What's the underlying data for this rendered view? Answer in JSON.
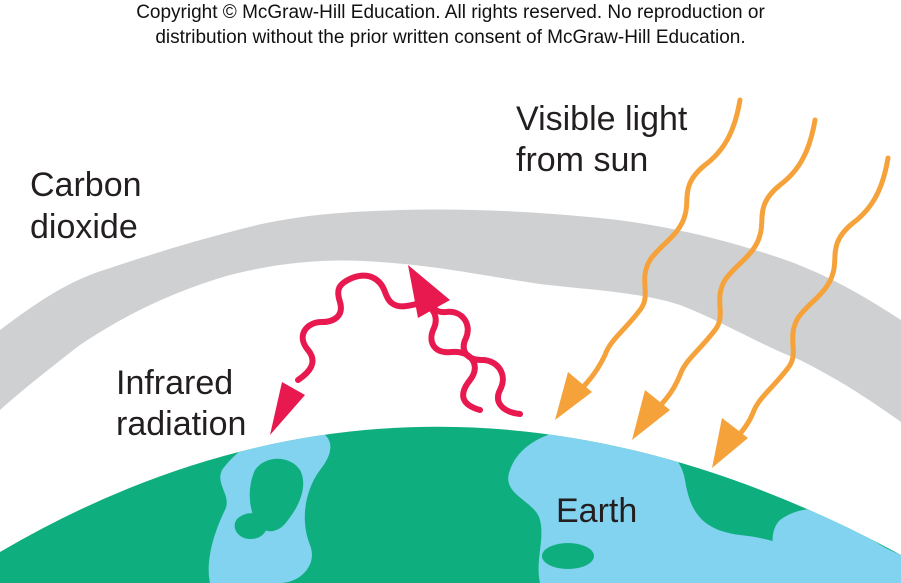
{
  "copyright": {
    "line1": "Copyright © McGraw-Hill Education.  All rights reserved. No reproduction or",
    "line2": "distribution without the prior written consent of McGraw-Hill Education."
  },
  "labels": {
    "carbon_dioxide": [
      "Carbon",
      "dioxide"
    ],
    "visible_light": [
      "Visible light",
      "from sun"
    ],
    "infrared": [
      "Infrared",
      "radiation"
    ],
    "earth": "Earth"
  },
  "colors": {
    "co2_layer": "#cfd0d2",
    "earth_land": "#0fae7e",
    "earth_water": "#82d3ef",
    "infrared_arrow": "#e8194f",
    "sunlight_arrow": "#f6a23a",
    "text": "#231f20"
  }
}
